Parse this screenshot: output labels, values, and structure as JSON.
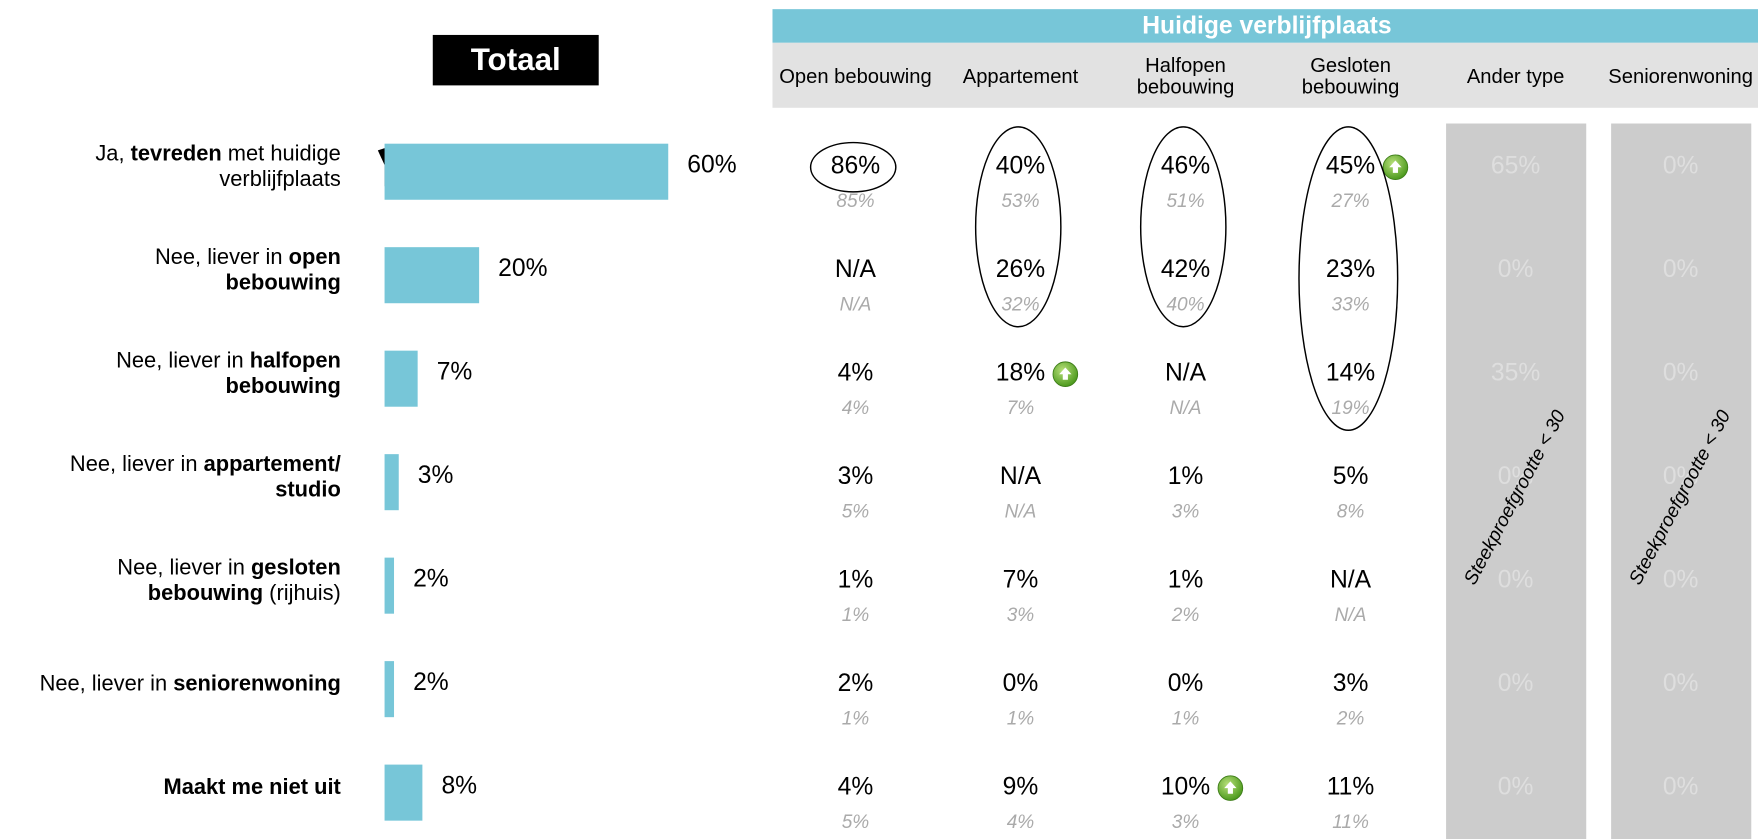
{
  "chart_data": {
    "type": "bar",
    "title": "Totaal",
    "color": "#77c6d8",
    "xlim": [
      0,
      100
    ],
    "categories": [
      [
        [
          {
            "text": "Ja, "
          },
          {
            "text": "tevreden",
            "bold": true
          },
          {
            "text": " met huidige"
          }
        ],
        [
          {
            "text": "verblijfplaats"
          }
        ]
      ],
      [
        [
          {
            "text": "Nee, liever in "
          },
          {
            "text": "open",
            "bold": true
          }
        ],
        [
          {
            "text": "bebouwing",
            "bold": true
          }
        ]
      ],
      [
        [
          {
            "text": "Nee, liever in "
          },
          {
            "text": "halfopen",
            "bold": true
          }
        ],
        [
          {
            "text": "bebouwing",
            "bold": true
          }
        ]
      ],
      [
        [
          {
            "text": "Nee, liever in "
          },
          {
            "text": "appartement/",
            "bold": true
          }
        ],
        [
          {
            "text": "studio",
            "bold": true
          }
        ]
      ],
      [
        [
          {
            "text": "Nee, liever in "
          },
          {
            "text": "gesloten",
            "bold": true
          }
        ],
        [
          {
            "text": "bebouwing",
            "bold": true
          },
          {
            "text": " (rijhuis)"
          }
        ]
      ],
      [
        [
          {
            "text": "Nee, liever in "
          },
          {
            "text": "seniorenwoning",
            "bold": true
          }
        ]
      ],
      [
        [
          {
            "text": "Maakt me niet uit",
            "bold": true
          }
        ]
      ]
    ],
    "values": [
      60,
      20,
      7,
      3,
      2,
      2,
      8
    ],
    "value_labels": [
      "60%",
      "20%",
      "7%",
      "3%",
      "2%",
      "2%",
      "8%"
    ]
  },
  "table": {
    "title": "Huidige verblijfplaats",
    "low_sample_note": "Steekproefgrootte < 30",
    "columns": [
      {
        "name": [
          "Open bebouwing"
        ],
        "low_sample": false
      },
      {
        "name": [
          "Appartement"
        ],
        "low_sample": false
      },
      {
        "name": [
          "Halfopen",
          "bebouwing"
        ],
        "low_sample": false
      },
      {
        "name": [
          "Gesloten",
          "bebouwing"
        ],
        "low_sample": false
      },
      {
        "name": [
          "Ander type"
        ],
        "low_sample": true
      },
      {
        "name": [
          "Seniorenwoning"
        ],
        "low_sample": true
      }
    ],
    "rows": [
      {
        "cells": [
          {
            "value": "86%",
            "previous": "85%",
            "circled": true
          },
          {
            "value": "40%",
            "previous": "53%",
            "circled": true
          },
          {
            "value": "46%",
            "previous": "51%",
            "circled": true
          },
          {
            "value": "45%",
            "previous": "27%",
            "circled": true,
            "increase": true
          },
          {
            "value": "65%"
          },
          {
            "value": "0%"
          }
        ]
      },
      {
        "cells": [
          {
            "value": "N/A",
            "previous": "N/A"
          },
          {
            "value": "26%",
            "previous": "32%",
            "circled": true
          },
          {
            "value": "42%",
            "previous": "40%",
            "circled": true
          },
          {
            "value": "23%",
            "previous": "33%",
            "circled": true
          },
          {
            "value": "0%"
          },
          {
            "value": "0%"
          }
        ]
      },
      {
        "cells": [
          {
            "value": "4%",
            "previous": "4%"
          },
          {
            "value": "18%",
            "previous": "7%",
            "increase": true
          },
          {
            "value": "N/A",
            "previous": "N/A"
          },
          {
            "value": "14%",
            "previous": "19%",
            "circled": true
          },
          {
            "value": "35%"
          },
          {
            "value": "0%"
          }
        ]
      },
      {
        "cells": [
          {
            "value": "3%",
            "previous": "5%"
          },
          {
            "value": "N/A",
            "previous": "N/A"
          },
          {
            "value": "1%",
            "previous": "3%"
          },
          {
            "value": "5%",
            "previous": "8%"
          },
          {
            "value": "0%"
          },
          {
            "value": "0%"
          }
        ]
      },
      {
        "cells": [
          {
            "value": "1%",
            "previous": "1%"
          },
          {
            "value": "7%",
            "previous": "3%"
          },
          {
            "value": "1%",
            "previous": "2%"
          },
          {
            "value": "N/A",
            "previous": "N/A"
          },
          {
            "value": "0%"
          },
          {
            "value": "0%"
          }
        ]
      },
      {
        "cells": [
          {
            "value": "2%",
            "previous": "1%"
          },
          {
            "value": "0%",
            "previous": "1%"
          },
          {
            "value": "0%",
            "previous": "1%"
          },
          {
            "value": "3%",
            "previous": "2%"
          },
          {
            "value": "0%"
          },
          {
            "value": "0%"
          }
        ]
      },
      {
        "cells": [
          {
            "value": "4%",
            "previous": "5%"
          },
          {
            "value": "9%",
            "previous": "4%"
          },
          {
            "value": "10%",
            "previous": "3%",
            "increase": true
          },
          {
            "value": "11%",
            "previous": "11%"
          },
          {
            "value": "0%"
          },
          {
            "value": "0%"
          }
        ]
      }
    ]
  }
}
